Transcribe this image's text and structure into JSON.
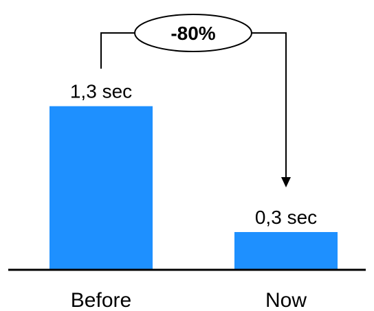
{
  "chart_data": {
    "type": "bar",
    "categories": [
      "Before",
      "Now"
    ],
    "values": [
      1.3,
      0.3
    ],
    "data_labels": [
      "1,3 sec",
      "0,3 sec"
    ],
    "unit": "sec",
    "ylim": [
      0,
      1.5
    ],
    "grid": false,
    "bar_color": "#1e90ff",
    "annotation": {
      "text": "-80%",
      "type": "change-arrow",
      "from": "Before",
      "to": "Now"
    }
  }
}
